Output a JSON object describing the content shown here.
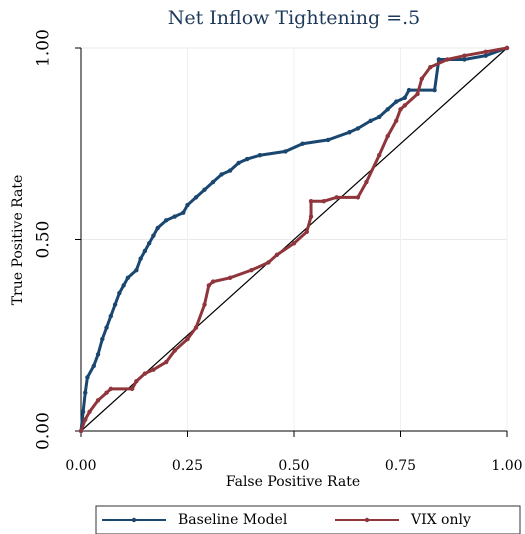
{
  "chart_data": {
    "type": "line",
    "title": "Net Inflow Tightening =.5",
    "x_label": "False Positive Rate",
    "y_label": "True Positive Rate",
    "xlim": [
      0,
      1
    ],
    "ylim": [
      0,
      1
    ],
    "xticks": [
      {
        "value": 0,
        "label": "0.00"
      },
      {
        "value": 0.25,
        "label": "0.25"
      },
      {
        "value": 0.5,
        "label": "0.50"
      },
      {
        "value": 0.75,
        "label": "0.75"
      },
      {
        "value": 1,
        "label": "1.00"
      }
    ],
    "yticks": [
      {
        "value": 0,
        "label": "0.00"
      },
      {
        "value": 0.5,
        "label": "0.50"
      },
      {
        "value": 1,
        "label": "1.00"
      }
    ],
    "grid": true,
    "legend": "bottom",
    "series": [
      {
        "name": "Baseline Model",
        "color": "#1a476f",
        "x": [
          0,
          0.005,
          0.01,
          0.015,
          0.03,
          0.04,
          0.05,
          0.06,
          0.07,
          0.08,
          0.09,
          0.1,
          0.11,
          0.13,
          0.14,
          0.15,
          0.16,
          0.17,
          0.18,
          0.2,
          0.22,
          0.24,
          0.25,
          0.27,
          0.29,
          0.31,
          0.33,
          0.35,
          0.37,
          0.39,
          0.42,
          0.48,
          0.52,
          0.58,
          0.63,
          0.65,
          0.68,
          0.7,
          0.72,
          0.74,
          0.76,
          0.77,
          0.83,
          0.84,
          0.9,
          0.95,
          1
        ],
        "values": [
          0,
          0.05,
          0.1,
          0.14,
          0.17,
          0.2,
          0.24,
          0.27,
          0.3,
          0.33,
          0.36,
          0.38,
          0.4,
          0.42,
          0.45,
          0.47,
          0.49,
          0.51,
          0.53,
          0.55,
          0.56,
          0.57,
          0.59,
          0.61,
          0.63,
          0.65,
          0.67,
          0.68,
          0.7,
          0.71,
          0.72,
          0.73,
          0.75,
          0.76,
          0.78,
          0.79,
          0.81,
          0.82,
          0.84,
          0.86,
          0.87,
          0.89,
          0.89,
          0.97,
          0.97,
          0.98,
          1
        ]
      },
      {
        "name": "VIX only",
        "color": "#90353b",
        "x": [
          0,
          0.01,
          0.02,
          0.04,
          0.06,
          0.07,
          0.12,
          0.13,
          0.15,
          0.17,
          0.2,
          0.22,
          0.25,
          0.27,
          0.29,
          0.3,
          0.31,
          0.35,
          0.4,
          0.44,
          0.46,
          0.5,
          0.53,
          0.54,
          0.54,
          0.57,
          0.6,
          0.65,
          0.67,
          0.7,
          0.72,
          0.74,
          0.75,
          0.76,
          0.79,
          0.8,
          0.82,
          0.86,
          0.9,
          0.95,
          1
        ],
        "values": [
          0,
          0.03,
          0.05,
          0.08,
          0.1,
          0.11,
          0.11,
          0.13,
          0.15,
          0.16,
          0.18,
          0.21,
          0.24,
          0.27,
          0.33,
          0.38,
          0.39,
          0.4,
          0.42,
          0.44,
          0.46,
          0.49,
          0.52,
          0.56,
          0.6,
          0.6,
          0.61,
          0.61,
          0.65,
          0.72,
          0.77,
          0.81,
          0.84,
          0.85,
          0.88,
          0.92,
          0.95,
          0.97,
          0.98,
          0.99,
          1
        ]
      }
    ]
  }
}
